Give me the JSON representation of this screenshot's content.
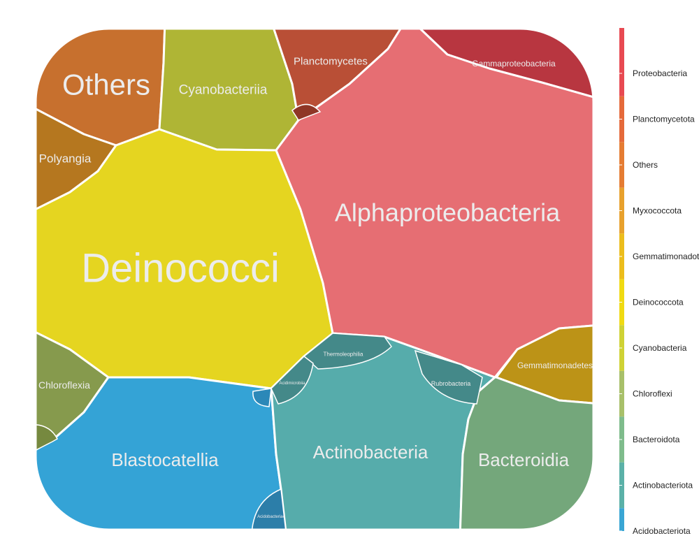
{
  "chart_data": {
    "type": "voronoi_treemap",
    "legend": {
      "position": "right",
      "entries": [
        {
          "label": "Proteobacteria",
          "color": "#e84a52"
        },
        {
          "label": "Planctomycetota",
          "color": "#e56a3b"
        },
        {
          "label": "Others",
          "color": "#e57c33"
        },
        {
          "label": "Myxococcota",
          "color": "#e8a12d"
        },
        {
          "label": "Gemmatimonadota",
          "color": "#ecbd1c"
        },
        {
          "label": "Deinococcota",
          "color": "#f0da13"
        },
        {
          "label": "Cyanobacteria",
          "color": "#cfd235"
        },
        {
          "label": "Chloroflexi",
          "color": "#a8c06a"
        },
        {
          "label": "Bacteroidota",
          "color": "#7fbc8c"
        },
        {
          "label": "Actinobacteriota",
          "color": "#5bb1a8"
        },
        {
          "label": "Acidobacteriota",
          "color": "#3aa6d4"
        }
      ]
    },
    "cells": [
      {
        "label": "Others",
        "phylum": "Others",
        "color": "#c7702e"
      },
      {
        "label": "Cyanobacteriia",
        "phylum": "Cyanobacteria",
        "color": "#afb535"
      },
      {
        "label": "Planctomycetes",
        "phylum": "Planctomycetota",
        "color": "#b94f36"
      },
      {
        "label": "Gammaproteobacteria",
        "phylum": "Proteobacteria",
        "color": "#b83640"
      },
      {
        "label": "Polyangia",
        "phylum": "Myxococcota",
        "color": "#b5771f"
      },
      {
        "label": "Deinococci",
        "phylum": "Deinococcota",
        "color": "#e5d520"
      },
      {
        "label": "Alphaproteobacteria",
        "phylum": "Proteobacteria",
        "color": "#e66e73"
      },
      {
        "label": "Gemmatimonadetes",
        "phylum": "Gemmatimonadota",
        "color": "#bc9317"
      },
      {
        "label": "Chloroflexia",
        "phylum": "Chloroflexi",
        "color": "#869a4d"
      },
      {
        "label": "Blastocatellia",
        "phylum": "Acidobacteriota",
        "color": "#34a3d6"
      },
      {
        "label": "Actinobacteria",
        "phylum": "Actinobacteriota",
        "color": "#56acab"
      },
      {
        "label": "Bacteroidia",
        "phylum": "Bacteroidota",
        "color": "#74a77b"
      },
      {
        "label": "Thermoleophilia",
        "phylum": "Actinobacteriota",
        "color": "#448989"
      },
      {
        "label": "Rubrobacteria",
        "phylum": "Actinobacteriota",
        "color": "#448989"
      },
      {
        "label": "Acidimicrobiia",
        "phylum": "Actinobacteriota",
        "color": "#448989"
      },
      {
        "label": "Acidobacteriae",
        "phylum": "Acidobacteriota",
        "color": "#2c7ea9"
      }
    ]
  }
}
